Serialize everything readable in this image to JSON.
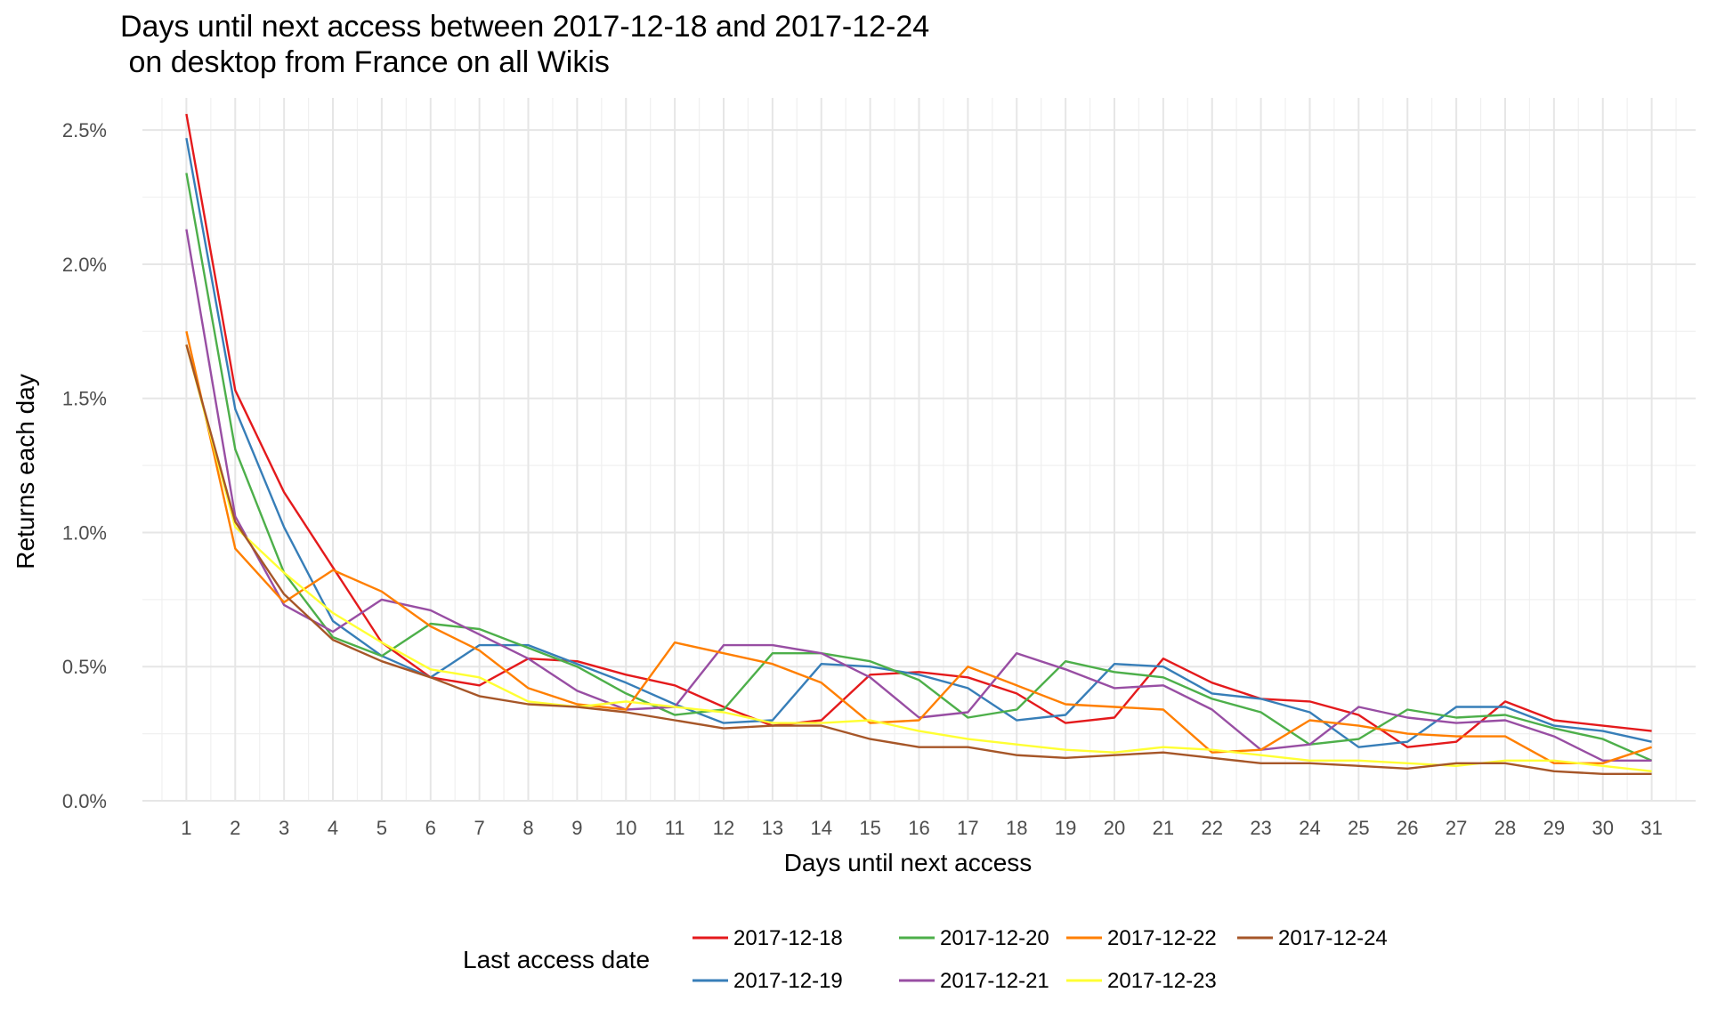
{
  "chart_data": {
    "type": "line",
    "title_line1": "Days until next access between 2017-12-18 and 2017-12-24",
    "title_line2": " on desktop from France on all Wikis",
    "xlabel": "Days until next access",
    "ylabel": "Returns each day",
    "x": [
      1,
      2,
      3,
      4,
      5,
      6,
      7,
      8,
      9,
      10,
      11,
      12,
      13,
      14,
      15,
      16,
      17,
      18,
      19,
      20,
      21,
      22,
      23,
      24,
      25,
      26,
      27,
      28,
      29,
      30,
      31
    ],
    "xlim": [
      0.1,
      31.9
    ],
    "ylim": [
      0,
      0.0262
    ],
    "yticks": [
      0,
      0.005,
      0.01,
      0.015,
      0.02,
      0.025
    ],
    "ytick_labels": [
      "0.0%",
      "0.5%",
      "1.0%",
      "1.5%",
      "2.0%",
      "2.5%"
    ],
    "grid": true,
    "legend_title": "Last access date",
    "legend_position": "bottom",
    "series": [
      {
        "name": "2017-12-18",
        "color": "#e41a1c",
        "values": [
          0.0256,
          0.0153,
          0.0115,
          0.0087,
          0.0059,
          0.0046,
          0.0043,
          0.0053,
          0.0052,
          0.0047,
          0.0043,
          0.0035,
          0.0028,
          0.003,
          0.0047,
          0.0048,
          0.0046,
          0.004,
          0.0029,
          0.0031,
          0.0053,
          0.0044,
          0.0038,
          0.0037,
          0.0032,
          0.002,
          0.0022,
          0.0037,
          0.003,
          0.0028,
          0.0026
        ]
      },
      {
        "name": "2017-12-19",
        "color": "#377eb8",
        "values": [
          0.0247,
          0.0146,
          0.0102,
          0.0067,
          0.0054,
          0.0046,
          0.0058,
          0.0058,
          0.0051,
          0.0044,
          0.0036,
          0.0029,
          0.003,
          0.0051,
          0.005,
          0.0047,
          0.0042,
          0.003,
          0.0032,
          0.0051,
          0.005,
          0.004,
          0.0038,
          0.0033,
          0.002,
          0.0022,
          0.0035,
          0.0035,
          0.0028,
          0.0026,
          0.0022
        ]
      },
      {
        "name": "2017-12-20",
        "color": "#4daf4a",
        "values": [
          0.0234,
          0.0131,
          0.0085,
          0.0061,
          0.0054,
          0.0066,
          0.0064,
          0.0057,
          0.005,
          0.004,
          0.0032,
          0.0034,
          0.0055,
          0.0055,
          0.0052,
          0.0045,
          0.0031,
          0.0034,
          0.0052,
          0.0048,
          0.0046,
          0.0038,
          0.0033,
          0.0021,
          0.0023,
          0.0034,
          0.0031,
          0.0032,
          0.0027,
          0.0023,
          0.0015
        ]
      },
      {
        "name": "2017-12-21",
        "color": "#984ea3",
        "values": [
          0.0213,
          0.0106,
          0.0073,
          0.0063,
          0.0075,
          0.0071,
          0.0062,
          0.0053,
          0.0041,
          0.0034,
          0.0035,
          0.0058,
          0.0058,
          0.0055,
          0.0046,
          0.0031,
          0.0033,
          0.0055,
          0.0049,
          0.0042,
          0.0043,
          0.0034,
          0.0019,
          0.0021,
          0.0035,
          0.0031,
          0.0029,
          0.003,
          0.0024,
          0.0015,
          0.0015
        ]
      },
      {
        "name": "2017-12-22",
        "color": "#ff7f00",
        "values": [
          0.0175,
          0.0094,
          0.0074,
          0.0086,
          0.0078,
          0.0065,
          0.0056,
          0.0042,
          0.0036,
          0.0034,
          0.0059,
          0.0055,
          0.0051,
          0.0044,
          0.0029,
          0.003,
          0.005,
          0.0043,
          0.0036,
          0.0035,
          0.0034,
          0.0018,
          0.0019,
          0.003,
          0.0028,
          0.0025,
          0.0024,
          0.0024,
          0.0014,
          0.0014,
          0.002
        ]
      },
      {
        "name": "2017-12-23",
        "color": "#ffff33",
        "values": [
          0.017,
          0.0102,
          0.0085,
          0.007,
          0.0059,
          0.0049,
          0.0046,
          0.0037,
          0.0035,
          0.0037,
          0.0035,
          0.0033,
          0.0029,
          0.0029,
          0.003,
          0.0026,
          0.0023,
          0.0021,
          0.0019,
          0.0018,
          0.002,
          0.0019,
          0.0017,
          0.0015,
          0.0015,
          0.0014,
          0.0013,
          0.0015,
          0.0015,
          0.0013,
          0.0011
        ]
      },
      {
        "name": "2017-12-24",
        "color": "#a65628",
        "values": [
          0.017,
          0.0104,
          0.0077,
          0.006,
          0.0052,
          0.0046,
          0.0039,
          0.0036,
          0.0035,
          0.0033,
          0.003,
          0.0027,
          0.0028,
          0.0028,
          0.0023,
          0.002,
          0.002,
          0.0017,
          0.0016,
          0.0017,
          0.0018,
          0.0016,
          0.0014,
          0.0014,
          0.0013,
          0.0012,
          0.0014,
          0.0014,
          0.0011,
          0.001,
          0.001
        ]
      }
    ]
  }
}
